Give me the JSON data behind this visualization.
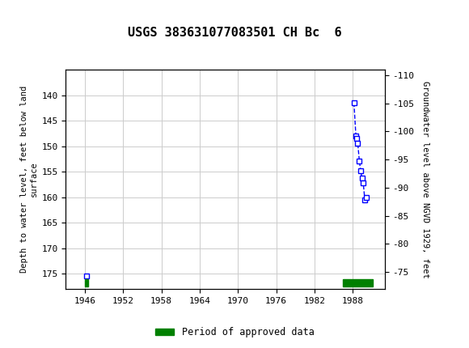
{
  "title": "USGS 383631077083501 CH Bc  6",
  "header_bg_color": "#006B54",
  "header_text_color": "#FFFFFF",
  "plot_bg_color": "#FFFFFF",
  "grid_color": "#CCCCCC",
  "ylabel_left": "Depth to water level, feet below land\nsurface",
  "ylabel_right": "Groundwater level above NGVD 1929, feet",
  "xlim": [
    1943,
    1993
  ],
  "ylim_left": [
    135,
    178
  ],
  "ylim_right": [
    -72,
    -111
  ],
  "xticks": [
    1946,
    1952,
    1958,
    1964,
    1970,
    1976,
    1982,
    1988
  ],
  "yticks_left": [
    140,
    145,
    150,
    155,
    160,
    165,
    170,
    175
  ],
  "yticks_right": [
    -75,
    -80,
    -85,
    -90,
    -95,
    -100,
    -105,
    -110
  ],
  "segment1_x": [
    1946.3
  ],
  "segment1_y": [
    175.5
  ],
  "segment2_x": [
    1988.2,
    1988.5,
    1988.65,
    1988.8,
    1989.05,
    1989.25,
    1989.45,
    1989.65,
    1989.9,
    1990.1
  ],
  "segment2_y": [
    141.5,
    148.0,
    148.5,
    149.5,
    153.0,
    154.8,
    156.3,
    157.2,
    160.5,
    160.0
  ],
  "data_color": "#0000FF",
  "line_style": "--",
  "marker": "s",
  "marker_size": 4,
  "approved_bar1_start": 1946.0,
  "approved_bar1_end": 1946.55,
  "approved_bar2_start": 1986.5,
  "approved_bar2_end": 1991.2,
  "approved_bar_y_center": 176.8,
  "approved_bar_height": 1.5,
  "approved_color": "#008000",
  "legend_label": "Period of approved data",
  "font_family": "monospace"
}
